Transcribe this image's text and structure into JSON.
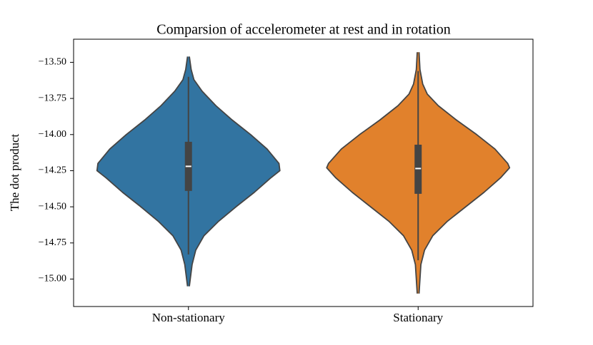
{
  "chart_data": {
    "type": "violin",
    "title": "Comparsion of accelerometer at rest and in rotation",
    "y_label": "The dot product",
    "categories": [
      "Non-stationary",
      "Stationary"
    ],
    "ylim": [
      -15.19,
      -13.34
    ],
    "yticks": [
      {
        "value": -13.5,
        "label": "−13.50"
      },
      {
        "value": -13.75,
        "label": "−13.75"
      },
      {
        "value": -14.0,
        "label": "−14.00"
      },
      {
        "value": -14.25,
        "label": "−14.25"
      },
      {
        "value": -14.5,
        "label": "−14.50"
      },
      {
        "value": -14.75,
        "label": "−14.75"
      },
      {
        "value": -15.0,
        "label": "−15.00"
      }
    ],
    "series": [
      {
        "name": "Non-stationary",
        "color": "#3274a1",
        "density_y": [
          -13.46,
          -13.55,
          -13.62,
          -13.7,
          -13.8,
          -13.9,
          -14.0,
          -14.1,
          -14.2,
          -14.25,
          -14.3,
          -14.4,
          -14.5,
          -14.6,
          -14.7,
          -14.8,
          -14.9,
          -15.0,
          -15.05
        ],
        "density_width": [
          0.01,
          0.03,
          0.06,
          0.15,
          0.3,
          0.48,
          0.68,
          0.86,
          0.99,
          1.0,
          0.9,
          0.72,
          0.52,
          0.33,
          0.17,
          0.08,
          0.04,
          0.02,
          0.01
        ],
        "whisker_low": -14.83,
        "q1": -14.39,
        "median": -14.22,
        "q3": -14.05,
        "whisker_high": -13.6
      },
      {
        "name": "Stationary",
        "color": "#e1812c",
        "density_y": [
          -13.43,
          -13.55,
          -13.65,
          -13.72,
          -13.8,
          -13.9,
          -14.0,
          -14.1,
          -14.2,
          -14.23,
          -14.3,
          -14.4,
          -14.5,
          -14.6,
          -14.7,
          -14.8,
          -14.9,
          -15.0,
          -15.1
        ],
        "density_width": [
          0.01,
          0.02,
          0.05,
          0.1,
          0.22,
          0.42,
          0.64,
          0.84,
          0.98,
          1.0,
          0.9,
          0.72,
          0.52,
          0.32,
          0.16,
          0.07,
          0.03,
          0.02,
          0.01
        ],
        "whisker_low": -14.87,
        "q1": -14.41,
        "median": -14.235,
        "q3": -14.07,
        "whisker_high": -13.56
      }
    ]
  }
}
